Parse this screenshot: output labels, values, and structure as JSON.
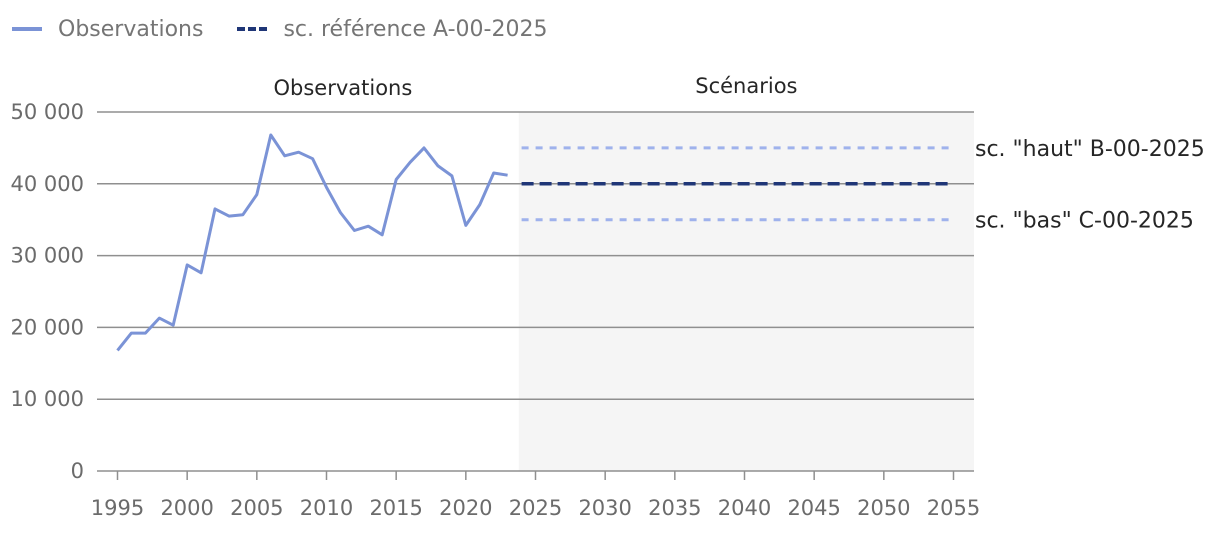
{
  "legend": [
    {
      "label": "Observations",
      "color": "#7b93d6",
      "style": "solid"
    },
    {
      "label": "sc. référence A-00-2025",
      "color": "#1f3677",
      "style": "dashed"
    }
  ],
  "chart_data": {
    "type": "line",
    "title": "",
    "xlabel": "",
    "ylabel": "",
    "xlim": [
      1995,
      2055
    ],
    "ylim": [
      0,
      50000
    ],
    "x_ticks": [
      1995,
      2000,
      2005,
      2010,
      2015,
      2020,
      2025,
      2030,
      2035,
      2040,
      2045,
      2050,
      2055
    ],
    "x_tick_labels": [
      "1995",
      "2000",
      "2005",
      "2010",
      "2015",
      "2020",
      "2025",
      "2030",
      "2035",
      "2040",
      "2045",
      "2050",
      "2055"
    ],
    "y_ticks": [
      0,
      10000,
      20000,
      30000,
      40000,
      50000
    ],
    "y_tick_labels": [
      "0",
      "10 000",
      "20 000",
      "30 000",
      "40 000",
      "50 000"
    ],
    "grid": "horizontal",
    "legend_position": "top-left",
    "sections": [
      {
        "label": "Observations",
        "x_start": 1995,
        "x_end": 2023.8,
        "shaded": false
      },
      {
        "label": "Scénarios",
        "x_start": 2023.8,
        "x_end": 2056.5,
        "shaded": true,
        "color": "#f5f5f5"
      }
    ],
    "series": [
      {
        "name": "Observations",
        "color": "#7b93d6",
        "style": "solid",
        "x": [
          1995,
          1996,
          1997,
          1998,
          1999,
          2000,
          2001,
          2002,
          2003,
          2004,
          2005,
          2006,
          2007,
          2008,
          2009,
          2010,
          2011,
          2012,
          2013,
          2014,
          2015,
          2016,
          2017,
          2018,
          2019,
          2020,
          2021,
          2022,
          2023
        ],
        "y": [
          16800,
          19200,
          19200,
          21300,
          20300,
          28700,
          27600,
          36500,
          35500,
          35700,
          38500,
          46800,
          43900,
          44400,
          43500,
          39500,
          36000,
          33500,
          34100,
          32900,
          40600,
          43000,
          45000,
          42500,
          41100,
          34200,
          37100,
          41500,
          41200
        ]
      },
      {
        "name": "sc. référence A-00-2025",
        "color": "#1f3677",
        "style": "dashed",
        "x": [
          2024,
          2055
        ],
        "y": [
          40000,
          40000
        ]
      },
      {
        "name": "sc. \"haut\" B-00-2025",
        "color": "#9fb2ec",
        "style": "dotted",
        "x": [
          2024,
          2055
        ],
        "y": [
          45000,
          45000
        ]
      },
      {
        "name": "sc. \"bas\" C-00-2025",
        "color": "#9fb2ec",
        "style": "dotted",
        "x": [
          2024,
          2055
        ],
        "y": [
          35000,
          35000
        ]
      }
    ]
  }
}
